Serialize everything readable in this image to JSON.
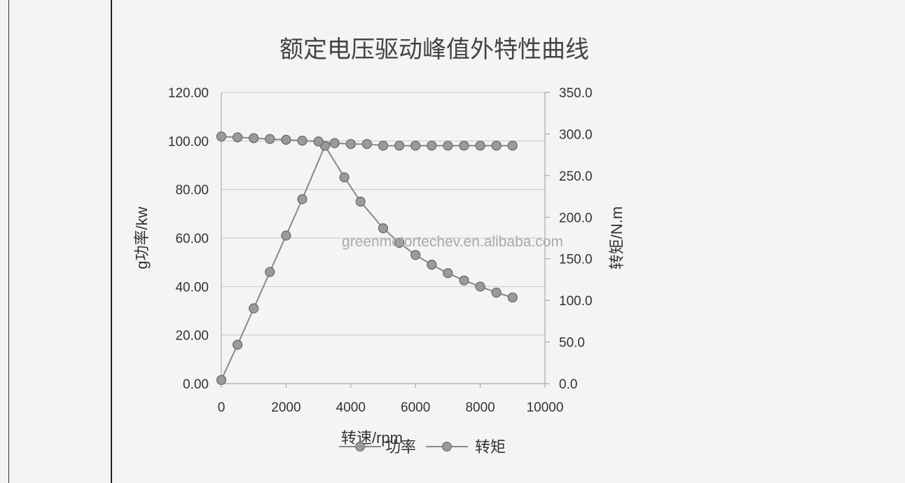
{
  "chart_data": {
    "type": "line",
    "title": "额定电压驱动峰值外特性曲线",
    "xlabel": "转速/rpm",
    "ylabel_left": "g功率/kw",
    "ylabel_right": "转矩/N.m",
    "xlim": [
      0,
      10000
    ],
    "ylim_left": [
      0,
      120
    ],
    "ylim_right": [
      0,
      350
    ],
    "x_ticks": [
      "0",
      "2000",
      "4000",
      "6000",
      "8000",
      "10000"
    ],
    "y_ticks_left": [
      "0.00",
      "20.00",
      "40.00",
      "60.00",
      "80.00",
      "100.00",
      "120.00"
    ],
    "y_ticks_right": [
      "0.0",
      "50.0",
      "100.0",
      "150.0",
      "200.0",
      "250.0",
      "300.0",
      "350.0"
    ],
    "grid": true,
    "legend_position": "bottom",
    "watermark": "greenmotortechev.en.alibaba.com",
    "series": [
      {
        "name": "功率",
        "axis": "left",
        "color": "#888888",
        "x": [
          0,
          500,
          1000,
          1500,
          2000,
          2500,
          3200,
          3800,
          4300,
          5000,
          5500,
          6000,
          6500,
          7000,
          7500,
          8000,
          8500,
          9000
        ],
        "y": [
          1.5,
          16,
          31,
          46,
          61,
          76,
          98,
          85,
          75,
          64,
          58,
          53,
          49,
          45.5,
          42.5,
          40,
          37.5,
          35.5
        ]
      },
      {
        "name": "转矩",
        "axis": "right",
        "color": "#888888",
        "x": [
          0,
          500,
          1000,
          1500,
          2000,
          2500,
          3000,
          3500,
          4000,
          4500,
          5000,
          5500,
          6000,
          6500,
          7000,
          7500,
          8000,
          8500,
          9000
        ],
        "y": [
          297,
          296,
          295,
          294,
          293,
          292,
          291,
          289,
          288,
          288,
          286,
          286,
          286,
          286,
          286,
          286,
          286,
          286,
          286
        ]
      }
    ]
  }
}
